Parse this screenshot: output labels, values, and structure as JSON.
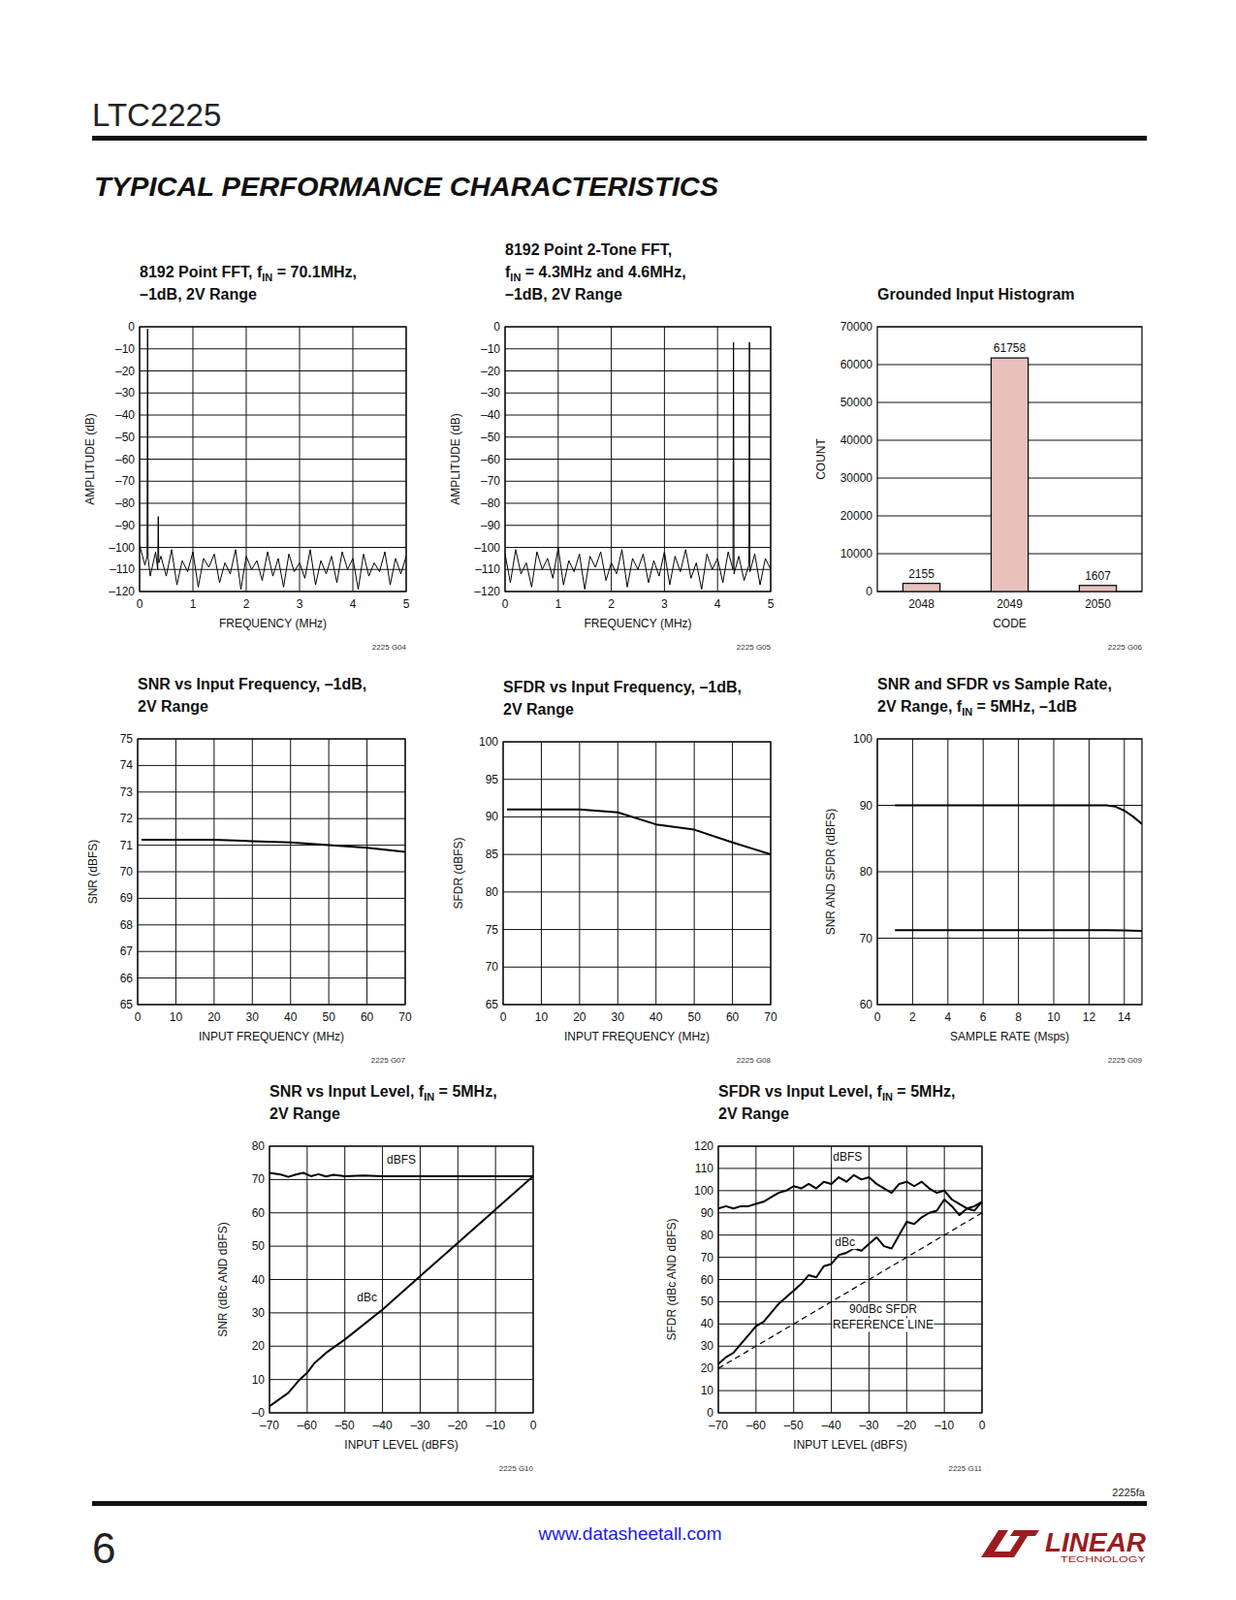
{
  "header": {
    "part": "LTC2225",
    "section": "TYPICAL PERFORMANCE CHARACTERISTICS"
  },
  "footer": {
    "page": "6",
    "url": "www.datasheetall.com",
    "doc_code": "2225fa",
    "logo": "LINEAR",
    "logo_sub": "TECHNOLOGY"
  },
  "chart_data": [
    {
      "type": "line",
      "title": [
        "8192 Point FFT, fIN = 70.1MHz,",
        "–1dB, 2V Range"
      ],
      "xlabel": "FREQUENCY (MHz)",
      "ylabel": "AMPLITUDE (dB)",
      "figure_id": "2225 G04",
      "color": "#000000",
      "grid": true,
      "xlim": [
        0,
        5
      ],
      "xticks": [
        0,
        1,
        2,
        3,
        4,
        5
      ],
      "ylim": [
        -120,
        0
      ],
      "yticks": [
        0,
        {
          "value": -10,
          "label": "–10"
        },
        {
          "value": -20,
          "label": "–20"
        },
        {
          "value": -30,
          "label": "–30"
        },
        {
          "value": -40,
          "label": "–40"
        },
        {
          "value": -50,
          "label": "–50"
        },
        {
          "value": -60,
          "label": "–60"
        },
        {
          "value": -70,
          "label": "–70"
        },
        {
          "value": -80,
          "label": "–80"
        },
        {
          "value": -90,
          "label": "–90"
        },
        {
          "value": -100,
          "label": "–100"
        },
        {
          "value": -110,
          "label": "–110"
        },
        {
          "value": -120,
          "label": "–120"
        }
      ],
      "series": [
        {
          "x": [
            0,
            0.1,
            0.14,
            0.15,
            0.16,
            0.2,
            0.3,
            0.34,
            0.35,
            0.36,
            0.4,
            0.5,
            0.6,
            0.7,
            0.8,
            0.9,
            1,
            1.1,
            1.2,
            1.3,
            1.4,
            1.5,
            1.6,
            1.7,
            1.8,
            1.9,
            2,
            2.1,
            2.2,
            2.3,
            2.4,
            2.5,
            2.6,
            2.7,
            2.8,
            2.9,
            3,
            3.1,
            3.2,
            3.3,
            3.4,
            3.5,
            3.6,
            3.7,
            3.8,
            3.9,
            4,
            4.1,
            4.2,
            4.3,
            4.4,
            4.5,
            4.6,
            4.7,
            4.8,
            4.9,
            5
          ],
          "values": [
            -99,
            -108,
            -104,
            -1,
            -105,
            -113,
            -102,
            -110,
            -86,
            -107,
            -104,
            -113,
            -101,
            -117,
            -106,
            -111,
            -102,
            -118,
            -105,
            -109,
            -103,
            -116,
            -107,
            -112,
            -101,
            -119,
            -104,
            -110,
            -106,
            -115,
            -102,
            -113,
            -105,
            -118,
            -103,
            -111,
            -107,
            -114,
            -101,
            -117,
            -106,
            -112,
            -104,
            -116,
            -102,
            -110,
            -105,
            -119,
            -103,
            -113,
            -107,
            -111,
            -102,
            -117,
            -105,
            -112,
            -104
          ]
        }
      ]
    },
    {
      "type": "line",
      "title": [
        "8192 Point 2-Tone FFT,",
        "fIN = 4.3MHz and 4.6MHz,",
        "–1dB, 2V Range"
      ],
      "xlabel": "FREQUENCY (MHz)",
      "ylabel": "AMPLITUDE (dB)",
      "figure_id": "2225 G05",
      "color": "#000000",
      "grid": true,
      "xlim": [
        0,
        5
      ],
      "xticks": [
        0,
        1,
        2,
        3,
        4,
        5
      ],
      "ylim": [
        -120,
        0
      ],
      "yticks": [
        0,
        {
          "value": -10,
          "label": "–10"
        },
        {
          "value": -20,
          "label": "–20"
        },
        {
          "value": -30,
          "label": "–30"
        },
        {
          "value": -40,
          "label": "–40"
        },
        {
          "value": -50,
          "label": "–50"
        },
        {
          "value": -60,
          "label": "–60"
        },
        {
          "value": -70,
          "label": "–70"
        },
        {
          "value": -80,
          "label": "–80"
        },
        {
          "value": -90,
          "label": "–90"
        },
        {
          "value": -100,
          "label": "–100"
        },
        {
          "value": -110,
          "label": "–110"
        },
        {
          "value": -120,
          "label": "–120"
        }
      ],
      "series": [
        {
          "x": [
            0,
            0.1,
            0.2,
            0.3,
            0.4,
            0.5,
            0.6,
            0.7,
            0.8,
            0.9,
            1,
            1.1,
            1.2,
            1.3,
            1.4,
            1.5,
            1.6,
            1.7,
            1.8,
            1.9,
            2,
            2.1,
            2.2,
            2.3,
            2.4,
            2.5,
            2.6,
            2.7,
            2.8,
            2.9,
            3,
            3.1,
            3.2,
            3.3,
            3.4,
            3.5,
            3.6,
            3.7,
            3.8,
            3.9,
            4,
            4.1,
            4.2,
            4.29,
            4.3,
            4.31,
            4.4,
            4.5,
            4.59,
            4.6,
            4.61,
            4.7,
            4.8,
            4.9,
            5
          ],
          "values": [
            -103,
            -116,
            -101,
            -112,
            -107,
            -118,
            -102,
            -110,
            -105,
            -114,
            -100,
            -117,
            -106,
            -111,
            -103,
            -119,
            -104,
            -109,
            -102,
            -115,
            -107,
            -112,
            -101,
            -118,
            -105,
            -110,
            -103,
            -116,
            -106,
            -113,
            -102,
            -117,
            -104,
            -111,
            -101,
            -114,
            -107,
            -119,
            -103,
            -110,
            -105,
            -116,
            -102,
            -110,
            -7,
            -112,
            -104,
            -115,
            -108,
            -7,
            -111,
            -103,
            -117,
            -105,
            -110
          ]
        }
      ]
    },
    {
      "type": "bar",
      "title": [
        "Grounded Input Histogram"
      ],
      "xlabel": "CODE",
      "ylabel": "COUNT",
      "figure_id": "2225 G06",
      "color": "#e8c1bd",
      "grid": true,
      "data_labels": true,
      "categories": [
        "2048",
        "2049",
        "2050"
      ],
      "values": [
        2155,
        61758,
        1607
      ],
      "ylim": [
        0,
        70000
      ],
      "yticks": [
        0,
        10000,
        20000,
        30000,
        40000,
        50000,
        60000,
        70000
      ]
    },
    {
      "type": "line",
      "title": [
        "SNR vs Input Frequency, –1dB,",
        "2V Range"
      ],
      "xlabel": "INPUT FREQUENCY (MHz)",
      "ylabel": "SNR (dBFS)",
      "figure_id": "2225 G07",
      "color": "#000000",
      "grid": true,
      "xlim": [
        0,
        70
      ],
      "xticks": [
        0,
        10,
        20,
        30,
        40,
        50,
        60,
        70
      ],
      "ylim": [
        65,
        75
      ],
      "yticks": [
        65,
        66,
        67,
        68,
        69,
        70,
        71,
        72,
        73,
        74,
        75
      ],
      "series": [
        {
          "x": [
            1,
            5,
            10,
            20,
            30,
            40,
            50,
            60,
            70
          ],
          "values": [
            71.2,
            71.2,
            71.2,
            71.2,
            71.15,
            71.1,
            71.0,
            70.9,
            70.75
          ]
        }
      ]
    },
    {
      "type": "line",
      "title": [
        "SFDR vs Input Frequency, –1dB,",
        "2V Range"
      ],
      "xlabel": "INPUT FREQUENCY (MHz)",
      "ylabel": "SFDR (dBFS)",
      "figure_id": "2225 G08",
      "color": "#000000",
      "grid": true,
      "xlim": [
        0,
        70
      ],
      "xticks": [
        0,
        10,
        20,
        30,
        40,
        50,
        60,
        70
      ],
      "ylim": [
        65,
        100
      ],
      "yticks": [
        65,
        70,
        75,
        80,
        85,
        90,
        95,
        100
      ],
      "series": [
        {
          "x": [
            1,
            10,
            20,
            30,
            40,
            50,
            60,
            70
          ],
          "values": [
            91,
            91,
            91,
            90.6,
            89,
            88.3,
            86.6,
            85
          ]
        }
      ]
    },
    {
      "type": "line",
      "title": [
        "SNR and SFDR vs Sample Rate,",
        "2V Range, fIN = 5MHz, –1dB"
      ],
      "xlabel": "SAMPLE RATE (Msps)",
      "ylabel": "SNR AND SFDR (dBFS)",
      "figure_id": "2225 G09",
      "color": "#000000",
      "grid": true,
      "xlim": [
        0,
        15
      ],
      "xticks": [
        0,
        2,
        4,
        6,
        8,
        10,
        12,
        14
      ],
      "ylim": [
        60,
        100
      ],
      "yticks": [
        60,
        70,
        80,
        90,
        100
      ],
      "series": [
        {
          "x": [
            1,
            2,
            4,
            6,
            8,
            10,
            12,
            13,
            13.5,
            14,
            14.5,
            15
          ],
          "values": [
            90,
            90,
            90,
            90,
            90,
            90,
            90,
            90,
            89.8,
            89.2,
            88.3,
            87.2
          ]
        },
        {
          "x": [
            1,
            2,
            4,
            6,
            8,
            10,
            12,
            13,
            14,
            15
          ],
          "values": [
            71.2,
            71.2,
            71.2,
            71.2,
            71.2,
            71.2,
            71.2,
            71.2,
            71.15,
            71.1
          ]
        }
      ]
    },
    {
      "type": "line",
      "title": [
        "SNR vs Input Level, fIN = 5MHz,",
        "2V Range"
      ],
      "xlabel": "INPUT LEVEL (dBFS)",
      "ylabel": "SNR (dBc AND dBFS)",
      "figure_id": "2225 G10",
      "color": "#000000",
      "grid": true,
      "annotations": [
        "dBFS",
        "dBc"
      ],
      "xlim": [
        -70,
        0
      ],
      "xticks": [
        {
          "value": -70,
          "label": "–70"
        },
        {
          "value": -60,
          "label": "–60"
        },
        {
          "value": -50,
          "label": "–50"
        },
        {
          "value": -40,
          "label": "–40"
        },
        {
          "value": -30,
          "label": "–30"
        },
        {
          "value": -20,
          "label": "–20"
        },
        {
          "value": -10,
          "label": "–10"
        },
        0
      ],
      "ylim": [
        0,
        80
      ],
      "yticks": [
        {
          "value": 0,
          "label": "–0"
        },
        10,
        20,
        30,
        40,
        50,
        60,
        70,
        80
      ],
      "series": [
        {
          "x": [
            -70,
            -67,
            -65,
            -63,
            -61,
            -59,
            -57,
            -55,
            -53,
            -50,
            -45,
            -40,
            -30,
            -20,
            -10,
            0
          ],
          "values": [
            72,
            71.5,
            70.8,
            71.5,
            72,
            71,
            71.6,
            70.9,
            71.4,
            71,
            71.2,
            71,
            71,
            71,
            71,
            71
          ]
        },
        {
          "x": [
            -70,
            -65,
            -62,
            -60,
            -58,
            -55,
            -50,
            -40,
            -30,
            -20,
            -10,
            0
          ],
          "values": [
            2,
            6,
            10,
            12,
            15,
            18,
            22,
            31,
            41,
            51,
            61,
            71
          ]
        }
      ]
    },
    {
      "type": "line",
      "title": [
        "SFDR vs Input Level, fIN = 5MHz,",
        "2V Range"
      ],
      "xlabel": "INPUT LEVEL (dBFS)",
      "ylabel": "SFDR (dBc AND dBFS)",
      "figure_id": "2225 G11",
      "color": "#000000",
      "grid": true,
      "annotations": [
        "dBFS",
        "dBc",
        "90dBc SFDR",
        "REFERENCE LINE"
      ],
      "xlim": [
        -70,
        0
      ],
      "xticks": [
        {
          "value": -70,
          "label": "–70"
        },
        {
          "value": -60,
          "label": "–60"
        },
        {
          "value": -50,
          "label": "–50"
        },
        {
          "value": -40,
          "label": "–40"
        },
        {
          "value": -30,
          "label": "–30"
        },
        {
          "value": -20,
          "label": "–20"
        },
        {
          "value": -10,
          "label": "–10"
        },
        0
      ],
      "ylim": [
        0,
        120
      ],
      "yticks": [
        0,
        10,
        20,
        30,
        40,
        50,
        60,
        70,
        80,
        90,
        100,
        110,
        120
      ],
      "series": [
        {
          "x": [
            -70,
            -68,
            -66,
            -64,
            -62,
            -60,
            -58,
            -56,
            -54,
            -52,
            -50,
            -48,
            -46,
            -44,
            -42,
            -40,
            -38,
            -36,
            -34,
            -32,
            -30,
            -28,
            -26,
            -24,
            -22,
            -20,
            -18,
            -16,
            -14,
            -12,
            -10,
            -8,
            -6,
            -4,
            -2,
            0
          ],
          "values": [
            92,
            93,
            92,
            93,
            93,
            94,
            95,
            97,
            99,
            100,
            102,
            101,
            103,
            101,
            104,
            103,
            106,
            104,
            107,
            105,
            106,
            103,
            101,
            99,
            103,
            104,
            102,
            104,
            101,
            99,
            100,
            96,
            94,
            92,
            93,
            95
          ]
        },
        {
          "x": [
            -70,
            -68,
            -66,
            -64,
            -62,
            -60,
            -58,
            -56,
            -54,
            -52,
            -50,
            -48,
            -46,
            -44,
            -42,
            -40,
            -38,
            -36,
            -34,
            -32,
            -30,
            -28,
            -26,
            -24,
            -22,
            -20,
            -18,
            -16,
            -14,
            -12,
            -10,
            -8,
            -6,
            -4,
            -2,
            0
          ],
          "values": [
            22,
            25,
            27,
            31,
            35,
            39,
            41,
            45,
            49,
            52,
            55,
            58,
            62,
            61,
            66,
            67,
            71,
            72,
            74,
            73,
            76,
            79,
            75,
            74,
            80,
            86,
            85,
            88,
            90,
            91,
            96,
            93,
            89,
            92,
            91,
            95
          ]
        },
        {
          "x": [
            -70,
            0
          ],
          "values": [
            20,
            90
          ],
          "line_style": "dashed"
        }
      ]
    }
  ]
}
